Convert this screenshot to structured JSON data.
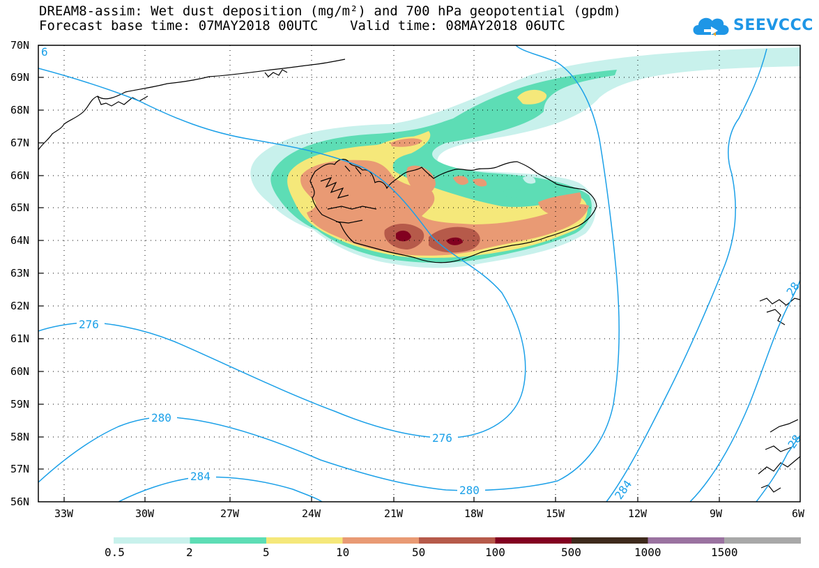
{
  "header": {
    "title_line1": "DREAM8-assim: Wet dust deposition (mg/m²) and 700 hPa geopotential (gpdm)",
    "title_line2": "Forecast base time: 07MAY2018 00UTC    Valid time: 08MAY2018 06UTC"
  },
  "logo": {
    "text": "SEEVCCC",
    "icon": "cloud-icon",
    "color": "#1e96e6"
  },
  "map": {
    "lat_labels": [
      "70N",
      "69N",
      "68N",
      "67N",
      "66N",
      "65N",
      "64N",
      "63N",
      "62N",
      "61N",
      "60N",
      "59N",
      "58N",
      "57N",
      "56N"
    ],
    "lon_labels": [
      "33W",
      "30W",
      "27W",
      "24W",
      "21W",
      "18W",
      "15W",
      "12W",
      "9W",
      "6W"
    ],
    "contour_labels": [
      "6",
      "276",
      "280",
      "284",
      "276",
      "280",
      "284",
      "28",
      "28"
    ],
    "contour_color": "#1ba0e8",
    "coastline_color": "#000000"
  },
  "colorbar": {
    "labels": [
      "0.5",
      "2",
      "5",
      "10",
      "50",
      "100",
      "500",
      "1000",
      "1500"
    ],
    "colors": [
      "#c8f1ec",
      "#5dddb5",
      "#f5e87a",
      "#e99a74",
      "#b65a4a",
      "#820020",
      "#3e2a1c",
      "#9a72a0",
      "#a8a8a8"
    ]
  }
}
